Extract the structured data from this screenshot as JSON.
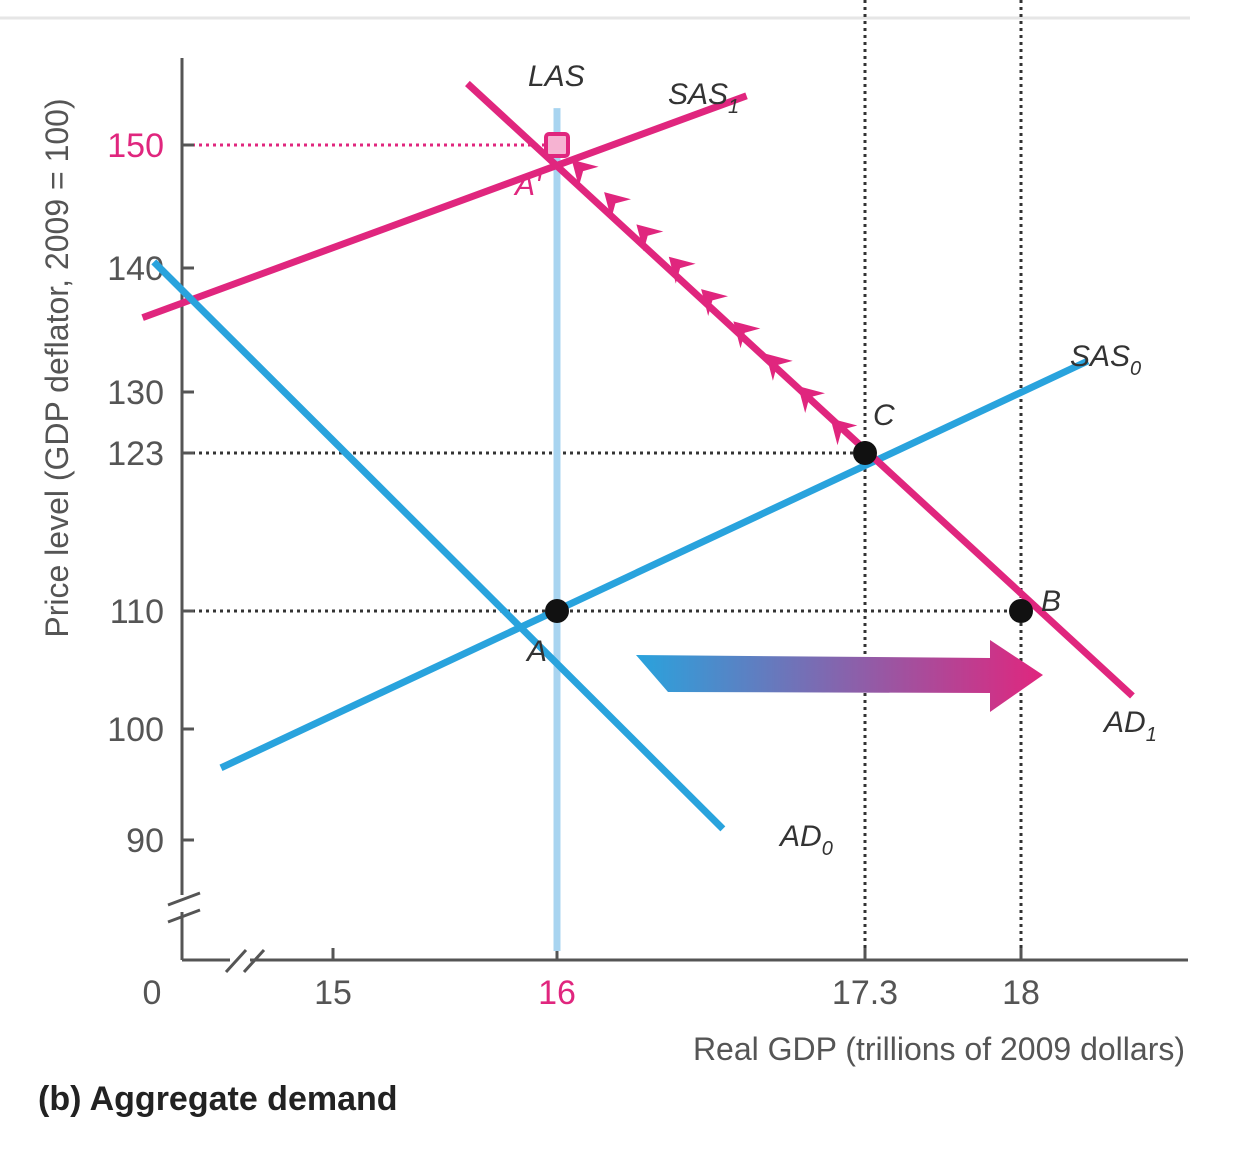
{
  "chart_data": {
    "type": "line",
    "title": "(b) Aggregate demand",
    "xlabel": "Real GDP (trillions of 2009 dollars)",
    "ylabel": "Price level (GDP deflator, 2009 = 100)",
    "origin_label": "0",
    "axis_breaks": true,
    "x_ticks": [
      {
        "value": 15,
        "label": "15",
        "highlight": false
      },
      {
        "value": 16,
        "label": "16",
        "highlight": true
      },
      {
        "value": 17.3,
        "label": "17.3",
        "highlight": false
      },
      {
        "value": 18,
        "label": "18",
        "highlight": false
      }
    ],
    "y_ticks": [
      {
        "value": 90,
        "label": "90",
        "highlight": false
      },
      {
        "value": 100,
        "label": "100",
        "highlight": false
      },
      {
        "value": 110,
        "label": "110",
        "highlight": false
      },
      {
        "value": 123,
        "label": "123",
        "highlight": false
      },
      {
        "value": 130,
        "label": "130",
        "highlight": false
      },
      {
        "value": 140,
        "label": "140",
        "highlight": false
      },
      {
        "value": 150,
        "label": "150",
        "highlight": true
      }
    ],
    "series": [
      {
        "name": "LAS",
        "role": "LAS",
        "color": "#a8d4f0",
        "points": [
          [
            16,
            153
          ],
          [
            16,
            80
          ]
        ]
      },
      {
        "name": "SAS0",
        "label_main": "SAS",
        "label_sub": "0",
        "role": "SAS0",
        "color": "#29a3dd",
        "points": [
          [
            14.5,
            96.5
          ],
          [
            18.3,
            132.5
          ]
        ]
      },
      {
        "name": "SAS1",
        "label_main": "SAS",
        "label_sub": "1",
        "role": "SAS1",
        "color": "#e0267e",
        "points": [
          [
            14.15,
            136
          ],
          [
            16.8,
            154
          ]
        ]
      },
      {
        "name": "AD0",
        "label_main": "AD",
        "label_sub": "0",
        "role": "AD0",
        "color": "#29a3dd",
        "points": [
          [
            14.2,
            140.5
          ],
          [
            16.7,
            91
          ]
        ]
      },
      {
        "name": "AD1",
        "label_main": "AD",
        "label_sub": "1",
        "role": "AD1",
        "color": "#e0267e",
        "points": [
          [
            15.6,
            155
          ],
          [
            18.5,
            102.8
          ]
        ]
      }
    ],
    "points": [
      {
        "label": "A",
        "x": 16,
        "y": 110,
        "color": "#111111"
      },
      {
        "label": "B",
        "x": 18,
        "y": 110,
        "color": "#111111"
      },
      {
        "label": "C",
        "x": 17.3,
        "y": 123,
        "color": "#111111"
      },
      {
        "label": "A'",
        "x": 16,
        "y": 150,
        "color": "#e0267e"
      }
    ],
    "guides": [
      {
        "type": "h",
        "y": 150,
        "x_to": 16,
        "color": "#e0267e"
      },
      {
        "type": "h",
        "y": 123,
        "x_to": 17.3,
        "color": "#333333"
      },
      {
        "type": "h",
        "y": 110,
        "x_to": 18,
        "color": "#333333"
      },
      {
        "type": "v",
        "x": 17.3,
        "color": "#333333"
      },
      {
        "type": "v",
        "x": 18,
        "color": "#333333"
      }
    ],
    "shift_arrow": {
      "from_color": "#29a3dd",
      "to_color": "#e0267e",
      "description": "AD shifts right"
    },
    "movement_arrows": {
      "from": [
        17.3,
        123
      ],
      "to": [
        16,
        150
      ],
      "count": 9,
      "color": "#e0267e"
    }
  }
}
